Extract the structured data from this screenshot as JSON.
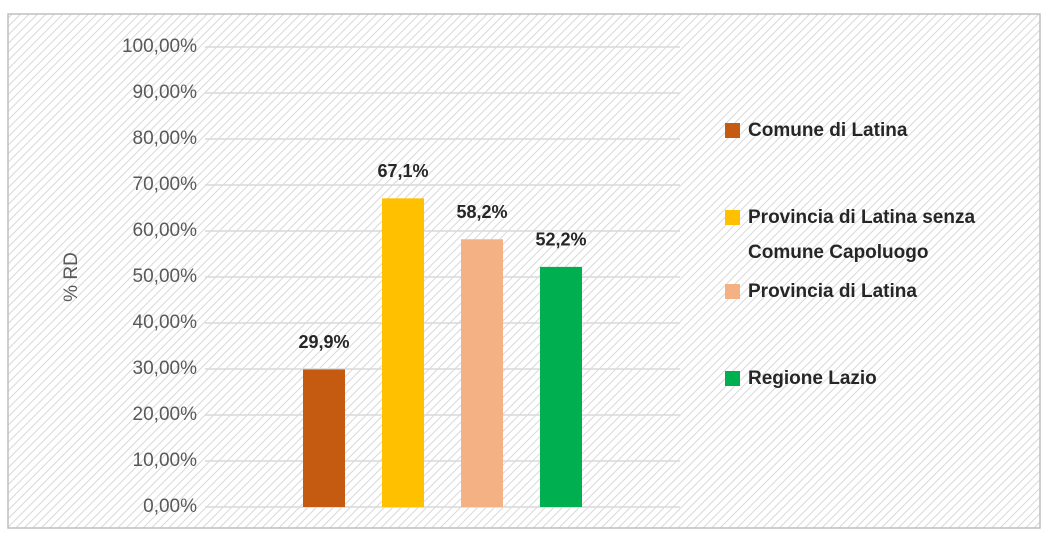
{
  "chart_data": {
    "type": "bar",
    "y_label": "% RD",
    "categories": [
      null
    ],
    "series": [
      {
        "name": "Comune di Latina",
        "color": "#c55a11",
        "values": [
          29.9
        ],
        "value_labels": [
          "29,9%"
        ]
      },
      {
        "name": "Provincia di Latina senza Comune Capoluogo",
        "color": "#ffc000",
        "values": [
          67.1
        ],
        "value_labels": [
          "67,1%"
        ]
      },
      {
        "name": "Provincia di Latina",
        "color": "#f4b183",
        "values": [
          58.2
        ],
        "value_labels": [
          "58,2%"
        ]
      },
      {
        "name": "Regione Lazio",
        "color": "#00b050",
        "values": [
          52.2
        ],
        "value_labels": [
          "52,2%"
        ]
      }
    ],
    "ylim": [
      0,
      100
    ],
    "yticks": [
      {
        "value": 0,
        "label": "0,00%"
      },
      {
        "value": 10,
        "label": "10,00%"
      },
      {
        "value": 20,
        "label": "20,00%"
      },
      {
        "value": 30,
        "label": "30,00%"
      },
      {
        "value": 40,
        "label": "40,00%"
      },
      {
        "value": 50,
        "label": "50,00%"
      },
      {
        "value": 60,
        "label": "60,00%"
      },
      {
        "value": 70,
        "label": "70,00%"
      },
      {
        "value": 80,
        "label": "80,00%"
      },
      {
        "value": 90,
        "label": "90,00%"
      },
      {
        "value": 100,
        "label": "100,00%"
      }
    ],
    "grid": true,
    "legend": "right"
  }
}
